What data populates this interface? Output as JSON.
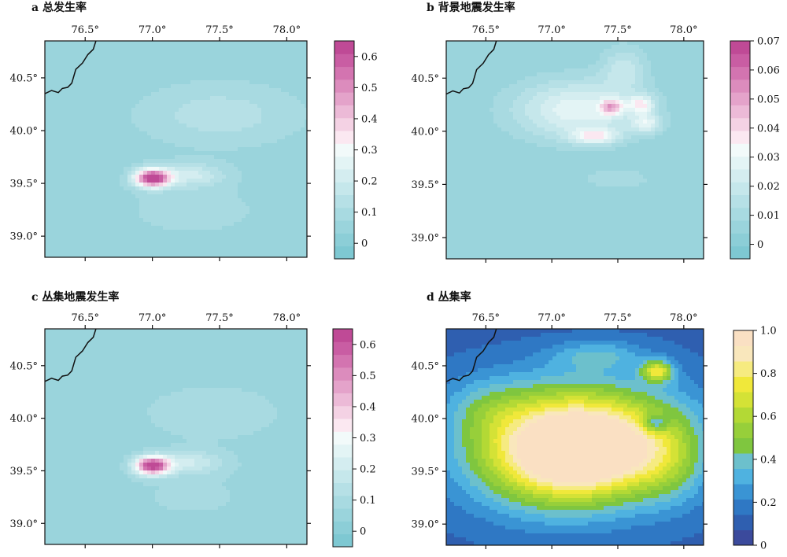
{
  "figure": {
    "lon_ticks": [
      "76.5°",
      "77.0°",
      "77.5°",
      "78.0°"
    ],
    "lat_ticks": [
      "40.5°",
      "40.0°",
      "39.5°",
      "39.0°"
    ]
  },
  "colors": {
    "pink_scale": [
      "#7ec8d2",
      "#8cced7",
      "#9ad4dc",
      "#a8dae1",
      "#b6e0e6",
      "#c5e7eb",
      "#d4edf0",
      "#e3f4f5",
      "#f2fafa",
      "#fbe8f1",
      "#f4d2e4",
      "#ecbad7",
      "#e4a3ca",
      "#dc8cbd",
      "#d374b0",
      "#c95da3",
      "#bf4a96"
    ],
    "jet_scale": [
      "#3b4a9c",
      "#2f5fb0",
      "#2f78c4",
      "#3a94d4",
      "#4fb2e0",
      "#6cc0cc",
      "#7fc63f",
      "#97cf3a",
      "#b3d935",
      "#d4e236",
      "#f0e83a",
      "#f6eb80",
      "#f9e7bc",
      "#fae0c3"
    ],
    "boundary": "#111111"
  },
  "chart_data": [
    {
      "type": "heatmap",
      "panel": "a",
      "title": "a 总发生率",
      "colorbar": {
        "min": -0.05,
        "max": 0.65,
        "ticks": [
          "0",
          "0.1",
          "0.2",
          "0.3",
          "0.4",
          "0.5",
          "0.6"
        ],
        "tick_values": [
          0,
          0.1,
          0.2,
          0.3,
          0.4,
          0.5,
          0.6
        ]
      },
      "xlim": [
        76.2,
        78.15
      ],
      "ylim": [
        38.8,
        40.85
      ],
      "background": 0.05,
      "blobs": [
        {
          "lon": 77.0,
          "lat": 39.55,
          "value": 0.62,
          "sx": 0.09,
          "sy": 0.06
        },
        {
          "lon": 77.28,
          "lat": 39.58,
          "value": 0.15,
          "sx": 0.18,
          "sy": 0.08
        },
        {
          "lon": 77.5,
          "lat": 40.15,
          "value": 0.09,
          "sx": 0.4,
          "sy": 0.2
        },
        {
          "lon": 77.3,
          "lat": 39.25,
          "value": 0.04,
          "sx": 0.4,
          "sy": 0.2
        }
      ]
    },
    {
      "type": "heatmap",
      "panel": "b",
      "title": "b 背景地震发生率",
      "colorbar": {
        "min": -0.005,
        "max": 0.07,
        "ticks": [
          "0",
          "0.01",
          "0.02",
          "0.03",
          "0.04",
          "0.05",
          "0.06",
          "0.07"
        ],
        "tick_values": [
          0,
          0.01,
          0.02,
          0.03,
          0.04,
          0.05,
          0.06,
          0.07
        ]
      },
      "xlim": [
        76.2,
        78.15
      ],
      "ylim": [
        38.8,
        40.85
      ],
      "background": 0.004,
      "blobs": [
        {
          "lon": 77.45,
          "lat": 40.23,
          "value": 0.03,
          "sx": 0.06,
          "sy": 0.05
        },
        {
          "lon": 77.68,
          "lat": 40.25,
          "value": 0.025,
          "sx": 0.07,
          "sy": 0.06
        },
        {
          "lon": 77.33,
          "lat": 39.95,
          "value": 0.025,
          "sx": 0.12,
          "sy": 0.05
        },
        {
          "lon": 77.72,
          "lat": 40.07,
          "value": 0.02,
          "sx": 0.08,
          "sy": 0.06
        },
        {
          "lon": 77.2,
          "lat": 40.2,
          "value": 0.025,
          "sx": 0.35,
          "sy": 0.2
        },
        {
          "lon": 77.55,
          "lat": 40.6,
          "value": 0.014,
          "sx": 0.12,
          "sy": 0.15
        },
        {
          "lon": 77.5,
          "lat": 39.55,
          "value": 0.006,
          "sx": 0.25,
          "sy": 0.1
        }
      ]
    },
    {
      "type": "heatmap",
      "panel": "c",
      "title": "c 丛集地震发生率",
      "colorbar": {
        "min": -0.05,
        "max": 0.65,
        "ticks": [
          "0",
          "0.1",
          "0.2",
          "0.3",
          "0.4",
          "0.5",
          "0.6"
        ],
        "tick_values": [
          0,
          0.1,
          0.2,
          0.3,
          0.4,
          0.5,
          0.6
        ]
      },
      "xlim": [
        76.2,
        78.15
      ],
      "ylim": [
        38.8,
        40.85
      ],
      "background": 0.05,
      "blobs": [
        {
          "lon": 77.0,
          "lat": 39.55,
          "value": 0.6,
          "sx": 0.09,
          "sy": 0.06
        },
        {
          "lon": 77.28,
          "lat": 39.58,
          "value": 0.14,
          "sx": 0.18,
          "sy": 0.08
        },
        {
          "lon": 77.45,
          "lat": 40.05,
          "value": 0.06,
          "sx": 0.35,
          "sy": 0.18
        },
        {
          "lon": 77.3,
          "lat": 39.25,
          "value": 0.03,
          "sx": 0.4,
          "sy": 0.2
        }
      ]
    },
    {
      "type": "heatmap",
      "panel": "d",
      "title": "d 丛集率",
      "colorbar": {
        "min": 0.0,
        "max": 1.0,
        "ticks": [
          "0",
          "0.2",
          "0.4",
          "0.6",
          "0.8",
          "1.0"
        ],
        "tick_values": [
          0,
          0.2,
          0.4,
          0.6,
          0.8,
          1.0
        ]
      },
      "xlim": [
        76.2,
        78.15
      ],
      "ylim": [
        38.8,
        40.85
      ],
      "background": 0.12,
      "blobs": [
        {
          "lon": 77.1,
          "lat": 39.6,
          "value": 0.7,
          "sx": 0.5,
          "sy": 0.35
        },
        {
          "lon": 77.3,
          "lat": 39.7,
          "value": 0.45,
          "sx": 0.4,
          "sy": 0.25
        },
        {
          "lon": 77.2,
          "lat": 40.05,
          "value": 0.35,
          "sx": 0.6,
          "sy": 0.3
        },
        {
          "lon": 77.8,
          "lat": 40.45,
          "value": 0.55,
          "sx": 0.08,
          "sy": 0.07
        },
        {
          "lon": 77.35,
          "lat": 40.6,
          "value": 0.2,
          "sx": 0.25,
          "sy": 0.1
        },
        {
          "lon": 77.78,
          "lat": 39.95,
          "value": -0.3,
          "sx": 0.07,
          "sy": 0.06
        },
        {
          "lon": 77.9,
          "lat": 39.6,
          "value": 0.2,
          "sx": 0.2,
          "sy": 0.3
        },
        {
          "lon": 76.5,
          "lat": 40.1,
          "value": 0.1,
          "sx": 0.2,
          "sy": 0.2
        }
      ]
    }
  ]
}
